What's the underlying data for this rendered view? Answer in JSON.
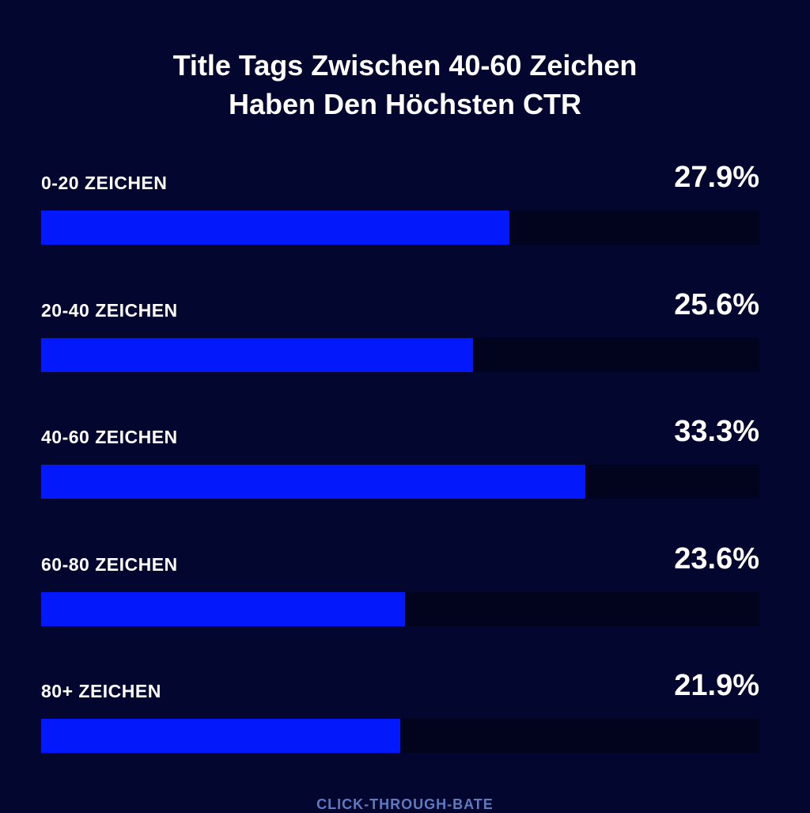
{
  "chart_data": {
    "type": "bar",
    "orientation": "horizontal",
    "title": [
      "Title Tags Zwischen 40-60 Zeichen",
      "Haben Den Höchsten CTR"
    ],
    "categories": [
      "0-20 ZEICHEN",
      "20-40 ZEICHEN",
      "40-60 ZEICHEN",
      "60-80 ZEICHEN",
      "80+ ZEICHEN"
    ],
    "values": [
      27.9,
      25.6,
      33.3,
      23.6,
      21.9
    ],
    "value_labels": [
      "27.9%",
      "25.6%",
      "33.3%",
      "23.6%",
      "21.9%"
    ],
    "fill_fractions": [
      0.652,
      0.601,
      0.758,
      0.507,
      0.5
    ],
    "xlabel": "CLICK-THROUGH-BATE",
    "ylabel": "",
    "grid": false,
    "colors": {
      "bar": "#0419fb",
      "track": "#02031c",
      "background": "#03062e",
      "footer": "#5e7bc0"
    }
  }
}
